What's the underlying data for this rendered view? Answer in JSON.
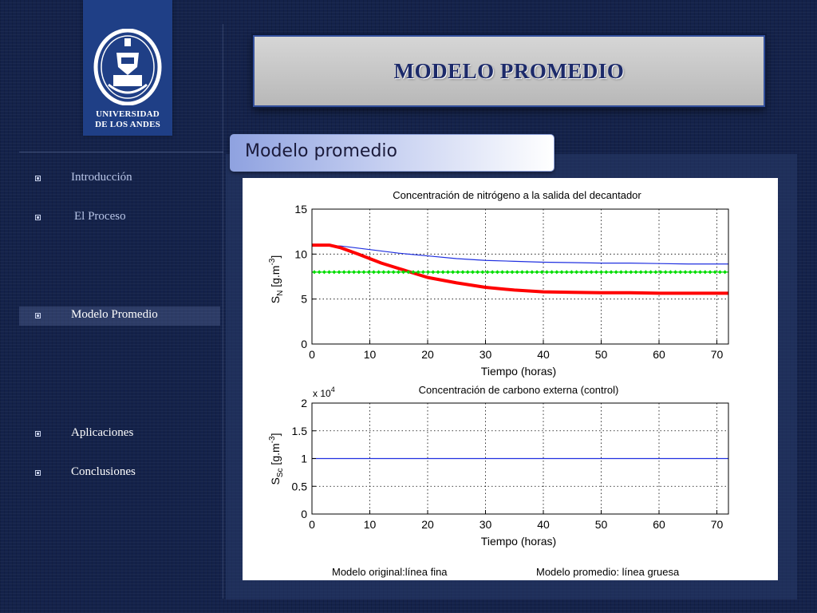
{
  "logo": {
    "line1": "UNIVERSIDAD",
    "line2": "DE LOS ANDES",
    "icon": "university-crest-icon"
  },
  "slide": {
    "title": "MODELO PROMEDIO",
    "subtitle": "Modelo promedio"
  },
  "nav": {
    "items": [
      {
        "label": "Introducción"
      },
      {
        "label": "El Proceso"
      },
      {
        "label": "Modelo Promedio"
      },
      {
        "label": "Aplicaciones"
      },
      {
        "label": "Conclusiones"
      }
    ],
    "bullet_icon": "square-bullet-icon"
  },
  "figure": {
    "legend_left": "Modelo original:línea fina",
    "legend_right": "Modelo promedio: línea gruesa"
  },
  "chart_data": [
    {
      "type": "line",
      "title": "Concentración de nitrógeno a la salida del decantador",
      "xlabel": "Tiempo (horas)",
      "ylabel": "S_N [g.m^-3]",
      "xlim": [
        0,
        72
      ],
      "ylim": [
        0,
        15
      ],
      "xticks": [
        0,
        10,
        20,
        30,
        40,
        50,
        60,
        70
      ],
      "yticks": [
        0,
        5,
        10,
        15
      ],
      "grid": true,
      "series": [
        {
          "color": "#2030e0",
          "x": [
            0,
            5,
            10,
            15,
            20,
            25,
            30,
            35,
            40,
            45,
            50,
            55,
            60,
            65,
            72
          ],
          "values": [
            11,
            10.9,
            10.5,
            10.1,
            9.8,
            9.5,
            9.3,
            9.2,
            9.1,
            9.05,
            9.0,
            9.0,
            8.95,
            8.9,
            8.9
          ]
        },
        {
          "color": "#ff0000",
          "x": [
            0,
            3,
            5,
            8,
            10,
            12,
            15,
            18,
            20,
            25,
            30,
            35,
            40,
            45,
            50,
            55,
            60,
            65,
            72
          ],
          "values": [
            11,
            11,
            10.7,
            10,
            9.5,
            9.0,
            8.4,
            7.8,
            7.4,
            6.8,
            6.3,
            6.0,
            5.8,
            5.75,
            5.7,
            5.7,
            5.65,
            5.65,
            5.65
          ]
        },
        {
          "color": "#00dd00",
          "x": [
            0,
            72
          ],
          "values": [
            8,
            8
          ]
        }
      ]
    },
    {
      "type": "line",
      "title": "Concentración de carbono externa (control)",
      "xlabel": "Tiempo (horas)",
      "ylabel": "S_Sc [g.m^-3]",
      "y_multiplier": "x 10^4",
      "xlim": [
        0,
        72
      ],
      "ylim": [
        0,
        2
      ],
      "xticks": [
        0,
        10,
        20,
        30,
        40,
        50,
        60,
        70
      ],
      "yticks": [
        0,
        0.5,
        1,
        1.5,
        2
      ],
      "grid": true,
      "series": [
        {
          "color": "#2030e0",
          "x": [
            0,
            72
          ],
          "values": [
            1,
            1
          ]
        }
      ]
    }
  ]
}
